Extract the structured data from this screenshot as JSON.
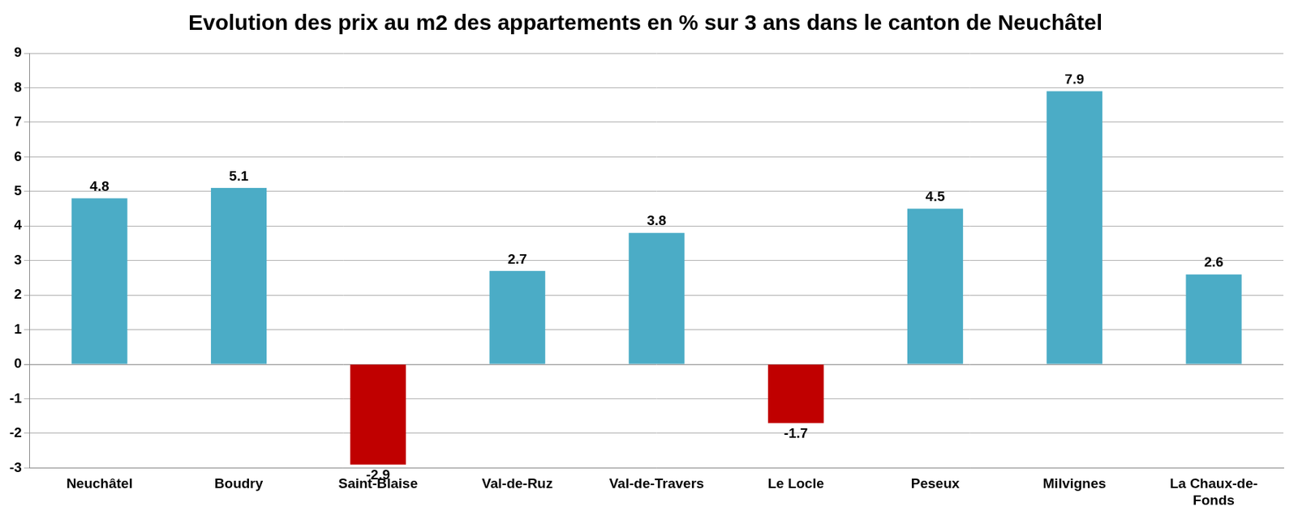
{
  "chart_data": {
    "type": "bar",
    "title": "Evolution des prix au m2 des appartements en % sur 3 ans dans le canton de Neuchâtel",
    "categories": [
      "Neuchâtel",
      "Boudry",
      "Saint-Blaise",
      "Val-de-Ruz",
      "Val-de-Travers",
      "Le Locle",
      "Peseux",
      "Milvignes",
      "La Chaux-de-Fonds"
    ],
    "values": [
      4.8,
      5.1,
      -2.9,
      2.7,
      3.8,
      -1.7,
      4.5,
      7.9,
      2.6
    ],
    "colors": [
      "#4bacc6",
      "#4bacc6",
      "#c00000",
      "#4bacc6",
      "#4bacc6",
      "#c00000",
      "#4bacc6",
      "#4bacc6",
      "#4bacc6"
    ],
    "ylim": [
      -3,
      9
    ],
    "yticks": [
      -3,
      -2,
      -1,
      0,
      1,
      2,
      3,
      4,
      5,
      6,
      7,
      8,
      9
    ],
    "grid": true,
    "data_labels": true,
    "legend": "none"
  }
}
